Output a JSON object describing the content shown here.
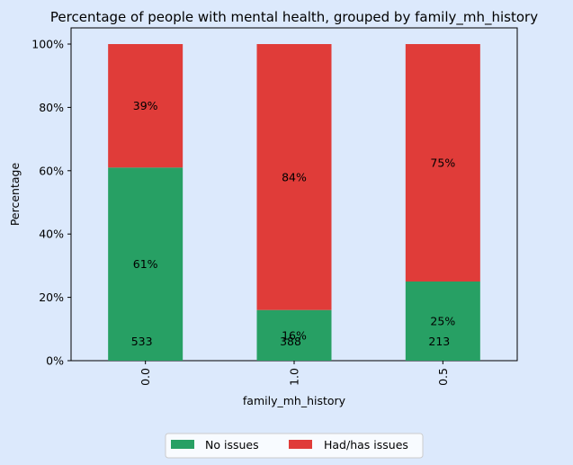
{
  "chart_data": {
    "type": "bar",
    "stacked": true,
    "title": "Percentage of people with mental health, grouped by family_mh_history",
    "xlabel": "family_mh_history",
    "ylabel": "Percentage",
    "categories": [
      "0.0",
      "1.0",
      "0.5"
    ],
    "series": [
      {
        "name": "No issues",
        "color": "#27a064",
        "values": [
          61,
          16,
          25
        ],
        "labels": [
          "61%",
          "16%",
          "25%"
        ]
      },
      {
        "name": "Had/has issues",
        "color": "#e03c39",
        "values": [
          39,
          84,
          75
        ],
        "labels": [
          "39%",
          "84%",
          "75%"
        ]
      }
    ],
    "counts": [
      "533",
      "388",
      "213"
    ],
    "ylim": [
      0,
      100
    ],
    "yticks": [
      0,
      20,
      40,
      60,
      80,
      100
    ],
    "ytick_labels": [
      "0%",
      "20%",
      "40%",
      "60%",
      "80%",
      "100%"
    ],
    "grid": false,
    "legend_position": "bottom-center",
    "plot_background": "#dce9fc",
    "page_background": "#dce9fc"
  }
}
